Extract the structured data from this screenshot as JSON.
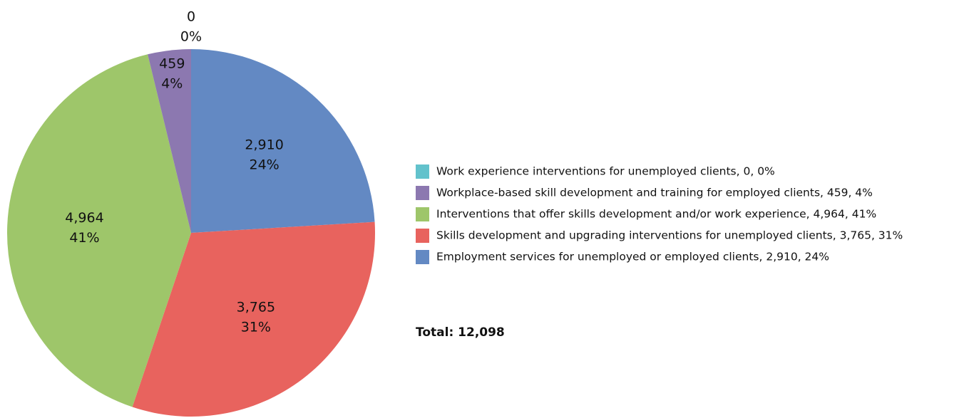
{
  "chart_data": {
    "type": "pie",
    "categories": [
      "Employment services for unemployed or employed clients",
      "Skills development and upgrading interventions for unemployed clients",
      "Interventions that offer skills development and/or work experience",
      "Workplace-based skill development and training for employed clients",
      "Work experience interventions for unemployed clients"
    ],
    "values": [
      2910,
      3765,
      4964,
      459,
      0
    ],
    "value_labels": [
      "2,910",
      "3,765",
      "4,964",
      "459",
      "0"
    ],
    "percentages": [
      24,
      31,
      41,
      4,
      0
    ],
    "percentage_labels": [
      "24%",
      "31%",
      "41%",
      "4%",
      "0%"
    ],
    "legend_labels": [
      "Employment services for unemployed or employed clients, 2,910, 24%",
      "Skills development and upgrading interventions for unemployed clients, 3,765, 31%",
      "Interventions that offer skills development and/or work experience, 4,964, 41%",
      "Workplace-based skill development and training for employed clients, 459, 4%",
      "Work experience interventions for unemployed clients, 0, 0%"
    ],
    "colors": [
      "#6389c3",
      "#e8635e",
      "#9ec66a",
      "#8c78b0",
      "#62c2cc"
    ],
    "annotation": "Total: 12,098"
  }
}
